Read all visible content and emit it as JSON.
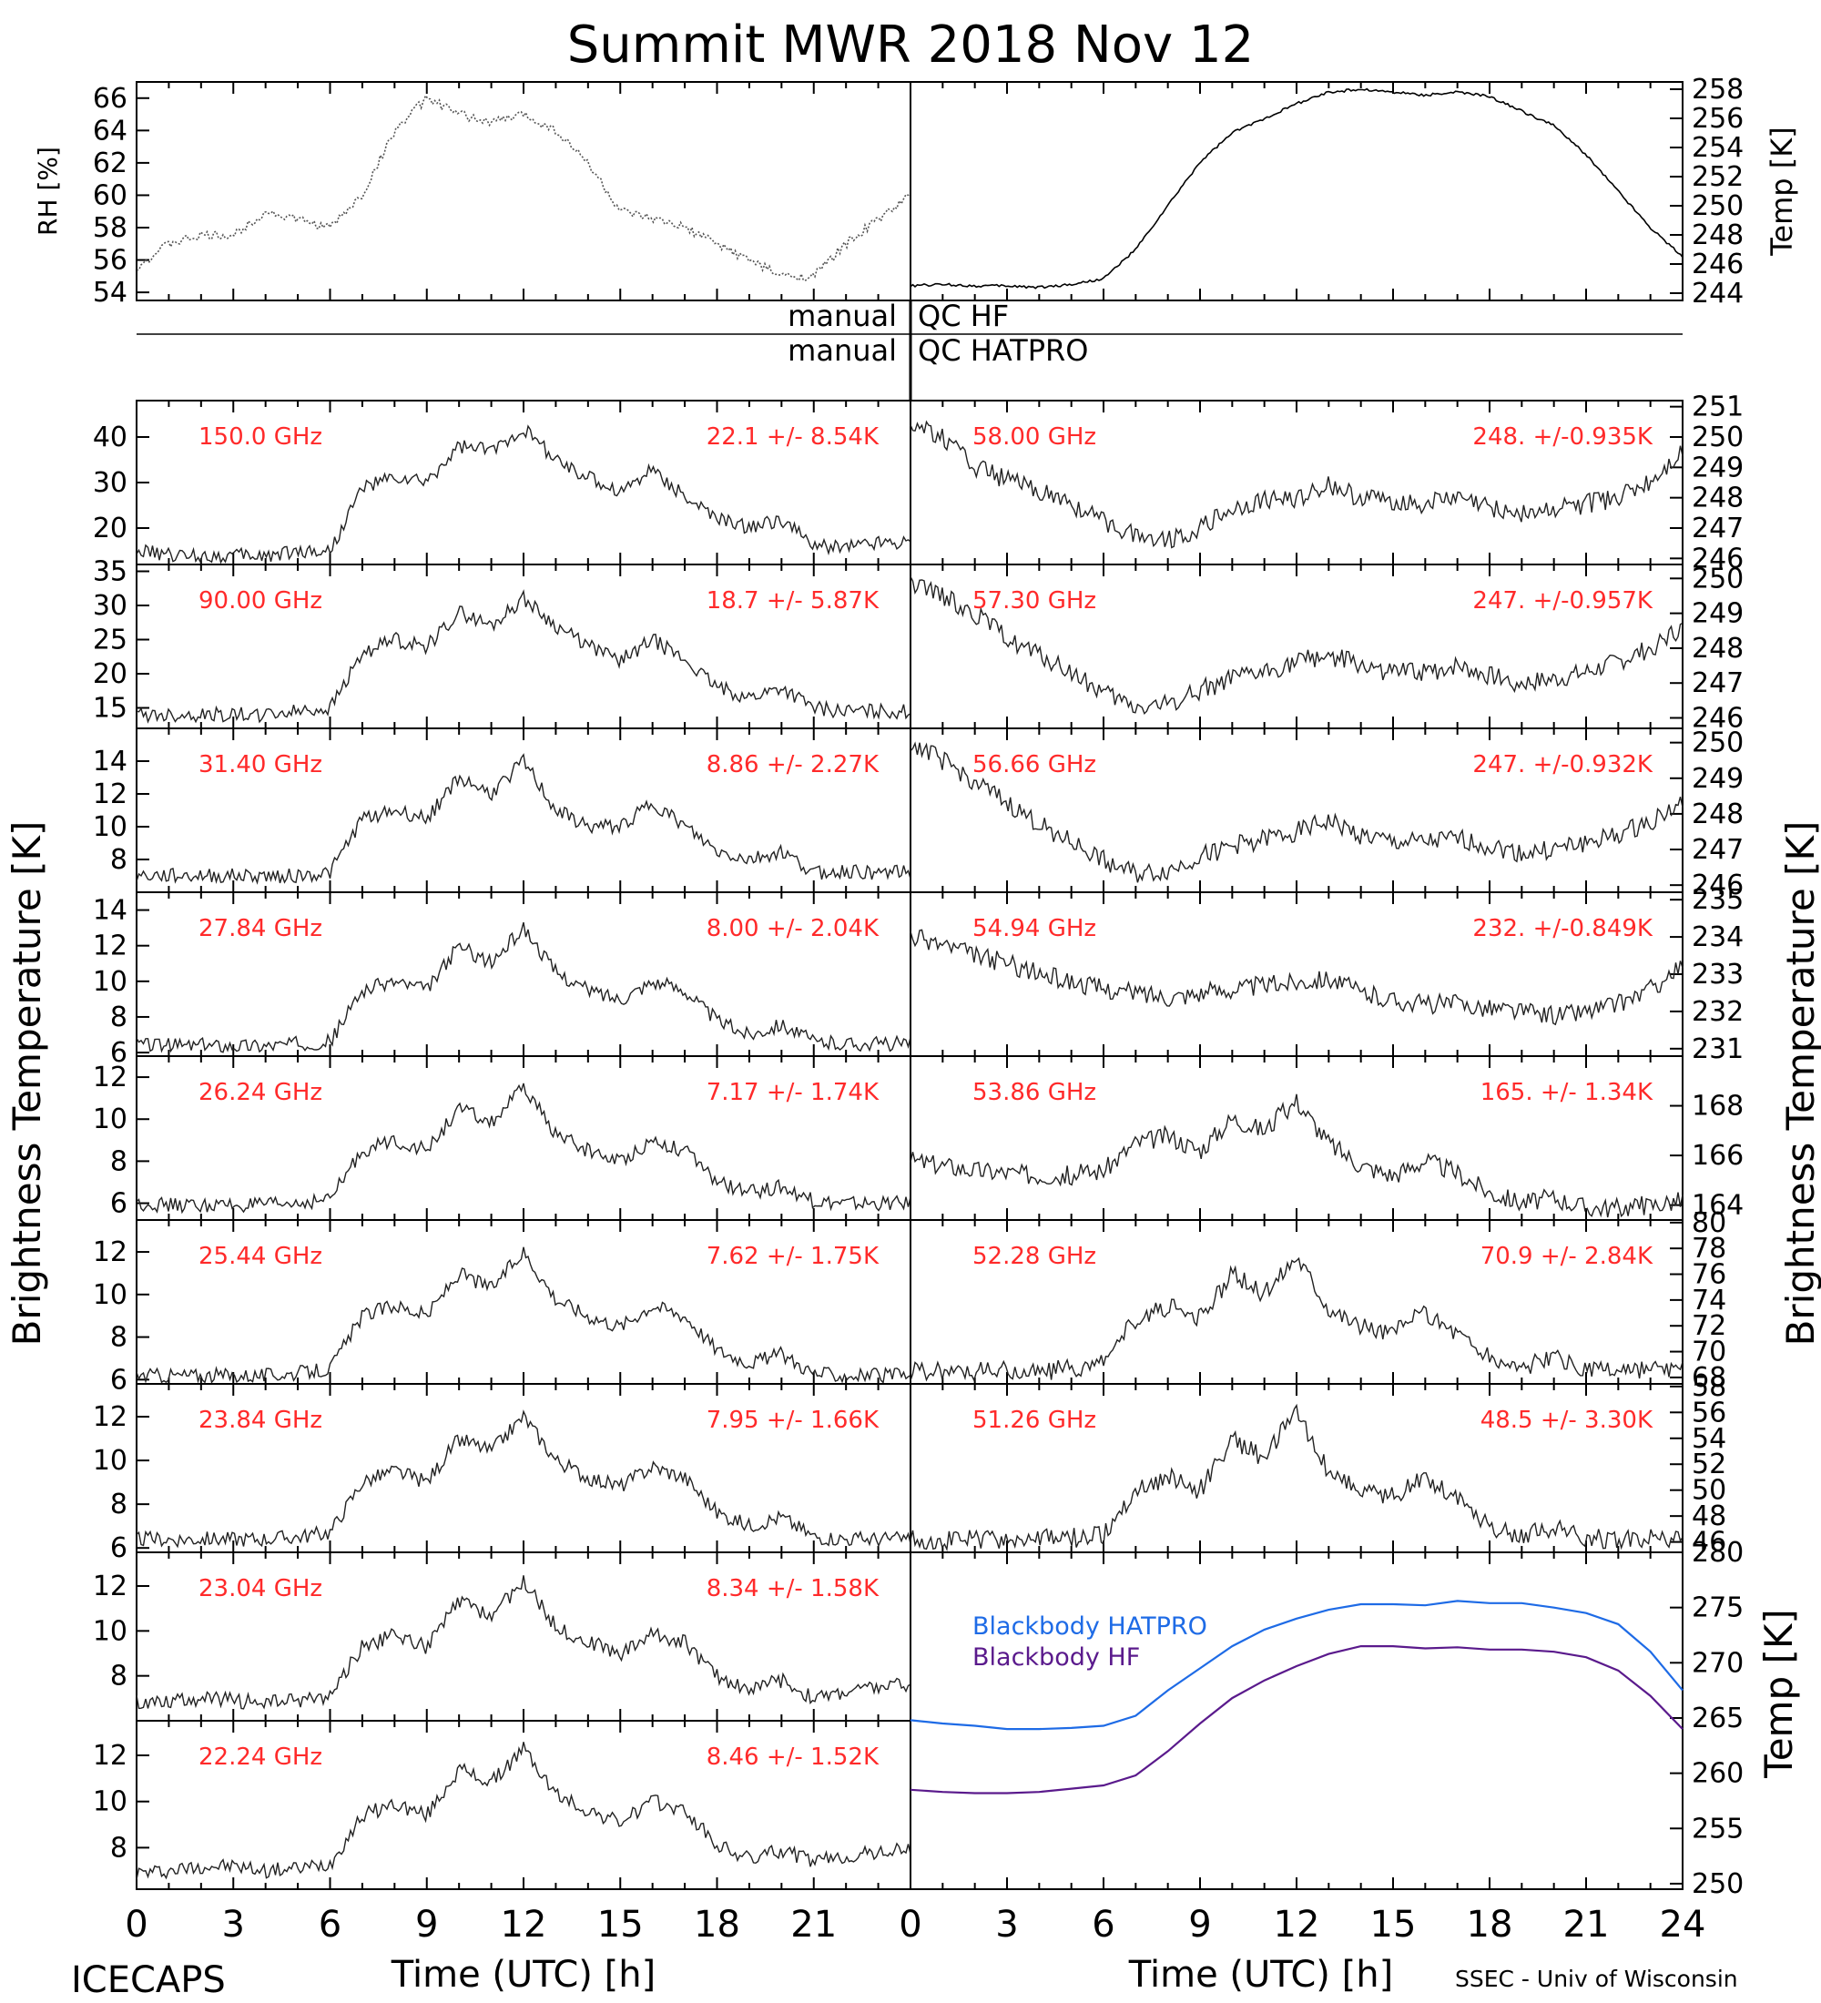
{
  "title": "Summit MWR 2018 Nov 12",
  "footer": {
    "left": "ICECAPS",
    "right": "SSEC - Univ of Wisconsin"
  },
  "chart_data": {
    "type": "line",
    "x_unit_label": "Time (UTC) [h]",
    "x_ticks": [
      "0",
      "3",
      "6",
      "9",
      "12",
      "15",
      "18",
      "21",
      "24"
    ],
    "left_axis_label": "Brightness Temperature [K]",
    "right_axis_label": "Brightness Temperature [K]",
    "bb_axis_label": "Temp [K]",
    "qc": {
      "manual": "manual",
      "hf": "QC HF",
      "hatpro": "QC HATPRO"
    },
    "surface": {
      "rh": {
        "ylabel": "RH [%]",
        "ylim": [
          53.5,
          67
        ],
        "ticks": [
          "54",
          "56",
          "58",
          "60",
          "62",
          "64",
          "66"
        ],
        "x": [
          0,
          1,
          2,
          3,
          4,
          5,
          6,
          7,
          8,
          9,
          10,
          11,
          12,
          13,
          14,
          15,
          16,
          17,
          18,
          19,
          20,
          21,
          22,
          23,
          24
        ],
        "y": [
          55.5,
          57,
          57.5,
          57.5,
          59,
          58.5,
          58,
          60,
          64,
          66,
          65,
          64.5,
          65,
          64,
          62,
          59,
          58.5,
          58,
          57,
          56,
          55,
          55,
          57,
          58.5,
          60
        ]
      },
      "temp": {
        "ylabel": "Temp [K]",
        "ylim": [
          243.5,
          258.5
        ],
        "ticks": [
          "244",
          "246",
          "248",
          "250",
          "252",
          "254",
          "256",
          "258"
        ],
        "x": [
          0,
          1,
          2,
          3,
          4,
          5,
          6,
          7,
          8,
          9,
          10,
          11,
          12,
          13,
          14,
          15,
          16,
          17,
          18,
          19,
          20,
          21,
          22,
          23,
          24
        ],
        "y": [
          244.5,
          244.6,
          244.5,
          244.5,
          244.4,
          244.6,
          245,
          247,
          250,
          253,
          255,
          256,
          257,
          257.8,
          258,
          257.8,
          257.6,
          257.8,
          257.5,
          256.5,
          255.5,
          253.5,
          251,
          248.5,
          246.5
        ]
      }
    },
    "left_panels": [
      {
        "label": "150.0 GHz",
        "stat": "22.1 +/-  8.54K",
        "ylim": [
          12,
          48
        ],
        "ticks": [
          "20",
          "30",
          "40"
        ],
        "y": [
          15,
          14,
          14,
          14,
          14,
          15,
          15,
          29,
          31,
          30,
          38,
          37,
          42,
          35,
          31,
          28,
          33,
          27,
          22,
          20,
          22,
          16,
          16,
          17,
          17
        ]
      },
      {
        "label": "90.00 GHz",
        "stat": "18.7 +/-  5.87K",
        "ylim": [
          12,
          36
        ],
        "ticks": [
          "15",
          "20",
          "25",
          "30",
          "35"
        ],
        "y": [
          14,
          14,
          14,
          14,
          14,
          14.5,
          15,
          23,
          25,
          24,
          29,
          27,
          31,
          27,
          24,
          22,
          25,
          22,
          18,
          16.5,
          18,
          15,
          14.5,
          14.5,
          14.5
        ]
      },
      {
        "label": "31.40 GHz",
        "stat": "8.86 +/- 2.27K",
        "ylim": [
          6,
          16
        ],
        "ticks": [
          "8",
          "10",
          "12",
          "14"
        ],
        "y": [
          7,
          7,
          7,
          7,
          7,
          7,
          7.2,
          10.5,
          11,
          10.5,
          13,
          12,
          14,
          11,
          10,
          10,
          11.5,
          10,
          8.5,
          8,
          8.5,
          7.2,
          7.3,
          7.2,
          7.2
        ]
      },
      {
        "label": "27.84 GHz",
        "stat": "8.00 +/- 2.04K",
        "ylim": [
          5.8,
          15
        ],
        "ticks": [
          "6",
          "8",
          "10",
          "12",
          "14"
        ],
        "y": [
          6.5,
          6.4,
          6.4,
          6.4,
          6.4,
          6.5,
          6.6,
          9.5,
          10,
          9.5,
          12,
          11,
          13,
          10.5,
          9.5,
          9,
          10,
          9.5,
          7.8,
          7,
          7.6,
          6.6,
          6.5,
          6.5,
          6.5
        ]
      },
      {
        "label": "26.24 GHz",
        "stat": "7.17 +/- 1.74K",
        "ylim": [
          5.2,
          13
        ],
        "ticks": [
          "6",
          "8",
          "10",
          "12"
        ],
        "y": [
          6,
          5.9,
          5.9,
          5.9,
          5.9,
          6,
          6.2,
          8.5,
          9,
          8.5,
          10.5,
          9.8,
          11.5,
          9.3,
          8.5,
          8,
          9,
          8.5,
          7,
          6.5,
          6.8,
          6.1,
          6,
          6,
          6
        ]
      },
      {
        "label": "25.44 GHz",
        "stat": "7.62 +/- 1.75K",
        "ylim": [
          5.8,
          13.5
        ],
        "ticks": [
          "6",
          "8",
          "10",
          "12"
        ],
        "y": [
          6.2,
          6.2,
          6.2,
          6.2,
          6.2,
          6.3,
          6.5,
          9,
          9.5,
          9,
          11,
          10.3,
          12,
          9.8,
          9,
          8.5,
          9.5,
          9,
          7.4,
          6.8,
          7.2,
          6.3,
          6.2,
          6.2,
          6.2
        ]
      },
      {
        "label": "23.84 GHz",
        "stat": "7.95 +/- 1.66K",
        "ylim": [
          5.8,
          13.5
        ],
        "ticks": [
          "6",
          "8",
          "10",
          "12"
        ],
        "y": [
          6.4,
          6.4,
          6.4,
          6.4,
          6.4,
          6.5,
          6.7,
          9,
          9.5,
          9,
          11,
          10.4,
          12,
          10,
          9.2,
          8.8,
          9.7,
          9.2,
          7.6,
          7,
          7.4,
          6.5,
          6.4,
          6.4,
          6.4
        ]
      },
      {
        "label": "23.04 GHz",
        "stat": "8.34 +/- 1.58K",
        "ylim": [
          6,
          13.5
        ],
        "ticks": [
          "8",
          "10",
          "12"
        ],
        "y": [
          6.8,
          6.9,
          7,
          6.9,
          6.8,
          6.9,
          7.1,
          9.3,
          9.8,
          9.3,
          11.3,
          10.7,
          12.2,
          10.2,
          9.5,
          9,
          9.9,
          9.5,
          8,
          7.4,
          7.8,
          7,
          7.3,
          7.5,
          7.6
        ]
      },
      {
        "label": "22.24 GHz",
        "stat": "8.46 +/- 1.52K",
        "ylim": [
          6.2,
          13.5
        ],
        "ticks": [
          "8",
          "10",
          "12"
        ],
        "y": [
          6.9,
          7,
          7.2,
          7.2,
          7,
          7.1,
          7.3,
          9.4,
          9.9,
          9.4,
          11.4,
          10.8,
          12.3,
          10.3,
          9.6,
          9.1,
          10,
          9.6,
          8.1,
          7.5,
          7.9,
          7.4,
          7.6,
          7.8,
          7.9
        ]
      }
    ],
    "right_panels": [
      {
        "label": "58.00 GHz",
        "stat": "248. +/-0.935K",
        "ylim": [
          245.8,
          251.2
        ],
        "ticks": [
          "246",
          "247",
          "248",
          "249",
          "250",
          "251"
        ],
        "y": [
          250.5,
          250,
          249,
          248.6,
          248.2,
          247.8,
          247.2,
          246.8,
          246.6,
          247,
          247.6,
          247.9,
          248,
          248.4,
          248,
          247.9,
          247.8,
          248,
          247.7,
          247.5,
          247.6,
          247.8,
          248,
          248.5,
          249.5
        ]
      },
      {
        "label": "57.30 GHz",
        "stat": "247. +/-0.957K",
        "ylim": [
          245.7,
          250.4
        ],
        "ticks": [
          "246",
          "247",
          "248",
          "249",
          "250"
        ],
        "y": [
          249.8,
          249.5,
          249,
          248.3,
          247.8,
          247.3,
          246.7,
          246.3,
          246.4,
          246.8,
          247.1,
          247.3,
          247.6,
          247.8,
          247.5,
          247.3,
          247.3,
          247.5,
          247.2,
          247,
          247.1,
          247.3,
          247.6,
          248,
          248.6
        ]
      },
      {
        "label": "56.66 GHz",
        "stat": "247. +/-0.932K",
        "ylim": [
          245.8,
          250.4
        ],
        "ticks": [
          "246",
          "247",
          "248",
          "249",
          "250"
        ],
        "y": [
          250,
          249.5,
          248.9,
          248.3,
          247.7,
          247.2,
          246.7,
          246.3,
          246.4,
          246.8,
          247.1,
          247.3,
          247.5,
          247.8,
          247.4,
          247.2,
          247.2,
          247.3,
          247.1,
          246.9,
          247,
          247.2,
          247.4,
          247.8,
          248.3
        ]
      },
      {
        "label": "54.94 GHz",
        "stat": "232. +/-0.849K",
        "ylim": [
          230.8,
          235.2
        ],
        "ticks": [
          "231",
          "232",
          "233",
          "234",
          "235"
        ],
        "y": [
          234,
          233.8,
          233.5,
          233.3,
          233,
          232.8,
          232.6,
          232.5,
          232.4,
          232.5,
          232.6,
          232.7,
          232.8,
          232.9,
          232.5,
          232.3,
          232.2,
          232.2,
          232.1,
          232,
          231.9,
          232,
          232.2,
          232.6,
          233.2
        ]
      },
      {
        "label": "53.86 GHz",
        "stat": "165. +/- 1.34K",
        "ylim": [
          163.4,
          170
        ],
        "ticks": [
          "164",
          "166",
          "168"
        ],
        "y": [
          165.8,
          165.6,
          165.4,
          165.3,
          165.2,
          165.2,
          165.4,
          166.5,
          166.8,
          166.2,
          167.5,
          167,
          168.2,
          166.5,
          165.6,
          165.2,
          165.8,
          165.3,
          164.5,
          164.1,
          164.3,
          163.9,
          163.9,
          164,
          164.2
        ]
      },
      {
        "label": "52.28 GHz",
        "stat": "70.9 +/- 2.84K",
        "ylim": [
          67.5,
          80.2
        ],
        "ticks": [
          "68",
          "70",
          "72",
          "74",
          "76",
          "78",
          "80"
        ],
        "y": [
          68.5,
          68.5,
          68.5,
          68.5,
          68.5,
          68.7,
          69,
          72.5,
          73.5,
          72.5,
          76,
          74.5,
          77.5,
          73.5,
          72,
          71.5,
          73,
          71.5,
          69.5,
          68.8,
          69.5,
          68.6,
          68.5,
          68.5,
          68.5
        ]
      },
      {
        "label": "51.26 GHz",
        "stat": "48.5 +/- 3.30K",
        "ylim": [
          45.2,
          58.2
        ],
        "ticks": [
          "46",
          "48",
          "50",
          "52",
          "54",
          "56",
          "58"
        ],
        "y": [
          46.2,
          46.2,
          46.2,
          46.2,
          46.2,
          46.3,
          46.5,
          50,
          51,
          50,
          54,
          52.5,
          56,
          51.5,
          50,
          49.5,
          51,
          49.5,
          47.2,
          46.5,
          47.2,
          46.3,
          46.2,
          46.2,
          46.2
        ]
      }
    ],
    "blackbody": {
      "ylim": [
        249.5,
        280
      ],
      "ticks": [
        "250",
        "255",
        "260",
        "265",
        "270",
        "275",
        "280"
      ],
      "series": [
        {
          "name": "Blackbody HATPRO",
          "color": "#1e6be6",
          "x": [
            0,
            1,
            2,
            3,
            4,
            5,
            6,
            7,
            8,
            9,
            10,
            11,
            12,
            13,
            14,
            15,
            16,
            17,
            18,
            19,
            20,
            21,
            22,
            23,
            24
          ],
          "y": [
            264.8,
            264.5,
            264.3,
            264,
            264,
            264.1,
            264.3,
            265.2,
            267.5,
            269.5,
            271.5,
            273,
            274,
            274.8,
            275.3,
            275.3,
            275.2,
            275.6,
            275.4,
            275.4,
            275,
            274.5,
            273.5,
            271,
            267.5
          ]
        },
        {
          "name": "Blackbody HF",
          "color": "#5a1a8c",
          "x": [
            0,
            1,
            2,
            3,
            4,
            5,
            6,
            7,
            8,
            9,
            10,
            11,
            12,
            13,
            14,
            15,
            16,
            17,
            18,
            19,
            20,
            21,
            22,
            23,
            24
          ],
          "y": [
            258.5,
            258.3,
            258.2,
            258.2,
            258.3,
            258.6,
            258.9,
            259.8,
            262,
            264.5,
            266.8,
            268.4,
            269.7,
            270.8,
            271.5,
            271.5,
            271.3,
            271.4,
            271.2,
            271.2,
            271,
            270.5,
            269.3,
            267,
            264
          ]
        }
      ]
    }
  }
}
